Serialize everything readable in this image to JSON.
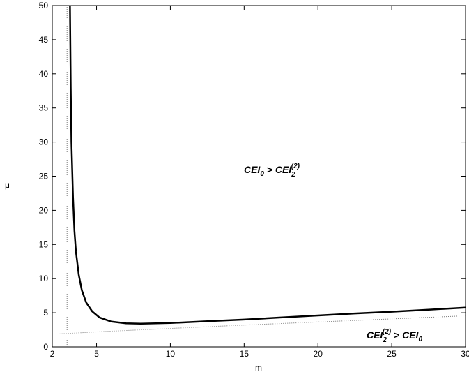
{
  "chart_data": {
    "type": "line",
    "title": "",
    "xlabel": "m",
    "ylabel": "μ",
    "xlim": [
      2,
      30
    ],
    "ylim": [
      0,
      50
    ],
    "x_ticks": [
      2,
      5,
      10,
      15,
      20,
      25,
      30
    ],
    "y_ticks": [
      0,
      5,
      10,
      15,
      20,
      25,
      30,
      35,
      40,
      45,
      50
    ],
    "grid": false,
    "legend": "none",
    "series": [
      {
        "style": "solid-thick",
        "color": "#000000",
        "points": [
          [
            3.2,
            50
          ],
          [
            3.25,
            38
          ],
          [
            3.3,
            30
          ],
          [
            3.4,
            22
          ],
          [
            3.5,
            17
          ],
          [
            3.6,
            14
          ],
          [
            3.8,
            10.5
          ],
          [
            4.0,
            8.3
          ],
          [
            4.3,
            6.5
          ],
          [
            4.7,
            5.2
          ],
          [
            5.2,
            4.3
          ],
          [
            6.0,
            3.7
          ],
          [
            7.0,
            3.45
          ],
          [
            8.0,
            3.4
          ],
          [
            10,
            3.5
          ],
          [
            12.5,
            3.75
          ],
          [
            15,
            4.0
          ],
          [
            17.5,
            4.3
          ],
          [
            20,
            4.6
          ],
          [
            22.5,
            4.9
          ],
          [
            25,
            5.15
          ],
          [
            27.5,
            5.45
          ],
          [
            30,
            5.75
          ]
        ]
      },
      {
        "style": "dotted",
        "color": "#777777",
        "points": [
          [
            3.0,
            0
          ],
          [
            3.0,
            50
          ]
        ]
      },
      {
        "style": "dotted",
        "color": "#777777",
        "points": [
          [
            2.5,
            1.9
          ],
          [
            5,
            2.2
          ],
          [
            10,
            2.7
          ],
          [
            15,
            3.2
          ],
          [
            20,
            3.65
          ],
          [
            25,
            4.1
          ],
          [
            30,
            4.55
          ]
        ]
      }
    ],
    "annotations": [
      {
        "main": "CEI",
        "sub1": "0",
        "op": " > ",
        "main2": "CEI",
        "sup2": "(2)",
        "sub2": "2",
        "x": 16,
        "y": 27.8
      },
      {
        "main": "CEI",
        "sup1": "(2)",
        "sub1": "2",
        "op": " > ",
        "main2": "CEI",
        "sub2": "0",
        "x": 26.3,
        "y": 1.6
      }
    ]
  }
}
